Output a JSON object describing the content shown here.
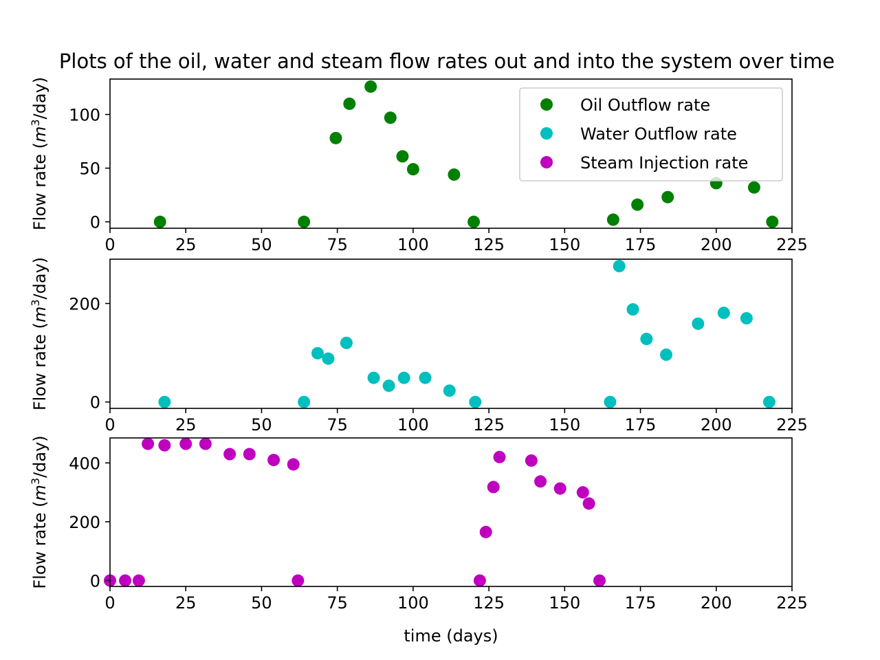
{
  "title": "Plots of the oil, water and steam flow rates out and into the system over time",
  "colors": {
    "oil": "#008000",
    "water": "#00bfbf",
    "steam": "#bf00bf"
  },
  "chart_data": [
    {
      "type": "scatter",
      "ylabel_prefix": "Flow rate (",
      "ylabel_unit_base": "m",
      "ylabel_unit_exp": "3",
      "ylabel_suffix": "/day)",
      "xlim": [
        0,
        225
      ],
      "ylim": [
        -6,
        133
      ],
      "xticks": [
        0,
        25,
        50,
        75,
        100,
        125,
        150,
        175,
        200,
        225
      ],
      "yticks": [
        0,
        50,
        100
      ],
      "legend_position": "top-right",
      "series": [
        {
          "name": "Oil Outflow rate",
          "color_key": "oil",
          "points": [
            [
              16.5,
              0
            ],
            [
              64,
              0
            ],
            [
              74.5,
              78
            ],
            [
              79,
              110
            ],
            [
              86,
              126
            ],
            [
              92.5,
              97
            ],
            [
              96.5,
              61
            ],
            [
              100,
              49
            ],
            [
              113.5,
              44
            ],
            [
              120,
              0
            ],
            [
              166,
              2
            ],
            [
              174,
              16
            ],
            [
              184,
              23
            ],
            [
              200,
              36
            ],
            [
              212.5,
              32
            ],
            [
              218.5,
              0
            ]
          ]
        }
      ]
    },
    {
      "type": "scatter",
      "ylabel_prefix": "Flow rate (",
      "ylabel_unit_base": "m",
      "ylabel_unit_exp": "3",
      "ylabel_suffix": "/day)",
      "xlim": [
        0,
        225
      ],
      "ylim": [
        -13,
        290
      ],
      "xticks": [
        0,
        25,
        50,
        75,
        100,
        125,
        150,
        175,
        200,
        225
      ],
      "yticks": [
        0,
        200
      ],
      "series": [
        {
          "name": "Water Outflow rate",
          "color_key": "water",
          "points": [
            [
              18,
              0
            ],
            [
              64,
              0
            ],
            [
              68.5,
              99
            ],
            [
              72,
              88
            ],
            [
              78,
              120
            ],
            [
              87,
              49
            ],
            [
              92,
              33
            ],
            [
              97,
              49
            ],
            [
              104,
              49
            ],
            [
              112,
              23
            ],
            [
              120.5,
              0
            ],
            [
              165,
              0
            ],
            [
              168,
              276
            ],
            [
              172.5,
              188
            ],
            [
              177,
              128
            ],
            [
              183.5,
              96
            ],
            [
              194,
              159
            ],
            [
              202.5,
              181
            ],
            [
              210,
              170
            ],
            [
              217.5,
              0
            ]
          ]
        }
      ]
    },
    {
      "type": "scatter",
      "ylabel_prefix": "Flow rate (",
      "ylabel_unit_base": "m",
      "ylabel_unit_exp": "3",
      "ylabel_suffix": "/day)",
      "xlabel": "time (days)",
      "xlim": [
        0,
        225
      ],
      "ylim": [
        -20,
        485
      ],
      "xticks": [
        0,
        25,
        50,
        75,
        100,
        125,
        150,
        175,
        200,
        225
      ],
      "yticks": [
        0,
        200,
        400
      ],
      "series": [
        {
          "name": "Steam Injection rate",
          "color_key": "steam",
          "points": [
            [
              0,
              0
            ],
            [
              5,
              0
            ],
            [
              9.5,
              0
            ],
            [
              12.5,
              465
            ],
            [
              18,
              460
            ],
            [
              25,
              465
            ],
            [
              31.5,
              465
            ],
            [
              39.5,
              430
            ],
            [
              46,
              430
            ],
            [
              54,
              410
            ],
            [
              60.5,
              395
            ],
            [
              62,
              0
            ],
            [
              122,
              0
            ],
            [
              124,
              165
            ],
            [
              126.5,
              318
            ],
            [
              128.5,
              420
            ],
            [
              139,
              408
            ],
            [
              142,
              337
            ],
            [
              148.5,
              313
            ],
            [
              156,
              300
            ],
            [
              158,
              262
            ],
            [
              161.5,
              0
            ]
          ]
        }
      ]
    }
  ]
}
